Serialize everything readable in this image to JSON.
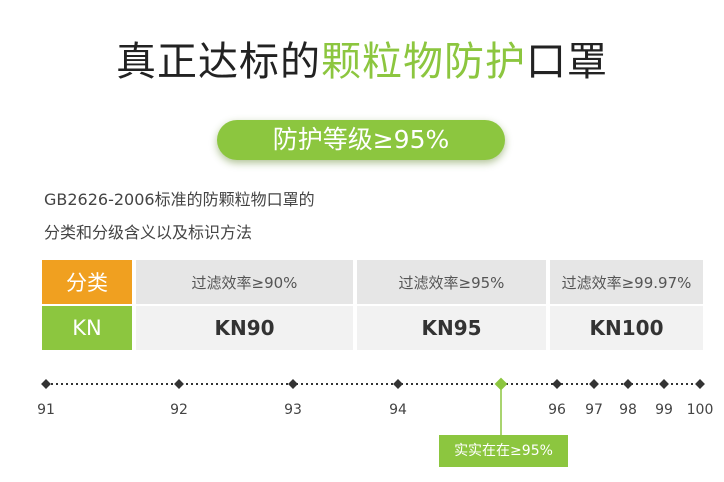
{
  "title": {
    "part1": "真正达标的",
    "highlight": "颗粒物防护",
    "part2": "口罩"
  },
  "badge": "防护等级≥95%",
  "description": {
    "line1": "GB2626-2006标准的防颗粒物口罩的",
    "line2": "分类和分级含义以及标识方法"
  },
  "table": {
    "row_headers": [
      "分类",
      "KN"
    ],
    "columns": [
      {
        "efficiency": "过滤效率≥90%",
        "grade": "KN90"
      },
      {
        "efficiency": "过滤效率≥95%",
        "grade": "KN95"
      },
      {
        "efficiency": "过滤效率≥99.97%",
        "grade": "KN100"
      }
    ]
  },
  "scale": {
    "ticks": [
      "91",
      "92",
      "93",
      "94",
      "96",
      "97",
      "98",
      "99",
      "100"
    ],
    "marker_value": 95,
    "marker_label": "实实在在≥95%"
  },
  "colors": {
    "green": "#8cc63f",
    "orange": "#f0a020",
    "dark": "#333333"
  }
}
